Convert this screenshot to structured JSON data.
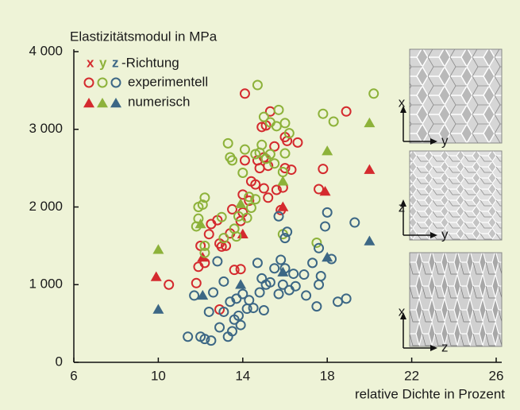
{
  "chart_data": {
    "type": "scatter",
    "title": "Elastizitätsmodul in MPa",
    "xlabel": "relative Dichte in Prozent",
    "xlim": [
      6,
      26
    ],
    "xticks": [
      6,
      10,
      14,
      18,
      22,
      26
    ],
    "ylim": [
      0,
      4000
    ],
    "yticks": [
      0,
      {
        "value": 1000,
        "label": "1 000"
      },
      {
        "value": 2000,
        "label": "2 000"
      },
      {
        "value": 3000,
        "label": "3 000"
      },
      {
        "value": 4000,
        "label": "4 000"
      }
    ],
    "legend_suffix": "-Richtung",
    "legend_experimental": "experimentell",
    "legend_numerical": "numerisch",
    "series": [
      {
        "name": "x",
        "color": "#d42a2e",
        "experimental_x": [
          10.5,
          11.8,
          11.9,
          12.0,
          12.2,
          12.4,
          12.5,
          12.8,
          12.9,
          13.0,
          13.2,
          13.5,
          13.6,
          13.9,
          13.9,
          14.0,
          14.0,
          14.1,
          14.3,
          14.4,
          14.6,
          14.7,
          14.8,
          14.9,
          15.0,
          15.0,
          15.1,
          15.2,
          15.2,
          15.3,
          15.5,
          15.6,
          15.8,
          16.0,
          16.0,
          16.1,
          16.3,
          16.6,
          17.6,
          17.8,
          18.9,
          14.1,
          13.4,
          12.9,
          15.9
        ],
        "experimental_y": [
          1000,
          1020,
          1230,
          1500,
          1280,
          1650,
          1780,
          1830,
          1530,
          1490,
          1500,
          1970,
          1190,
          1200,
          1820,
          1930,
          2160,
          2600,
          2080,
          2330,
          2290,
          2600,
          2500,
          3030,
          2640,
          2240,
          3050,
          2120,
          2530,
          3230,
          2780,
          2220,
          1960,
          2900,
          2500,
          2850,
          2480,
          2830,
          2230,
          2490,
          3230,
          3460,
          1660,
          680,
          2250
        ],
        "numerical_x": [
          9.9,
          12.1,
          14.0,
          15.9,
          17.9,
          20.0
        ],
        "numerical_y": [
          1100,
          1350,
          1650,
          2000,
          2200,
          2480
        ]
      },
      {
        "name": "y",
        "color": "#8db23a",
        "experimental_x": [
          11.8,
          11.9,
          11.9,
          12.1,
          12.2,
          12.2,
          12.2,
          13.0,
          13.1,
          13.3,
          13.4,
          13.5,
          13.6,
          13.7,
          13.8,
          14.0,
          14.1,
          14.2,
          14.3,
          14.4,
          14.6,
          14.7,
          14.8,
          14.9,
          15.0,
          15.1,
          15.3,
          15.3,
          15.5,
          15.6,
          15.7,
          15.9,
          16.0,
          16.2,
          16.0,
          17.5,
          17.8,
          18.3,
          20.2,
          15.9,
          14.6
        ],
        "experimental_y": [
          1750,
          1850,
          2000,
          2030,
          2120,
          1500,
          1410,
          1870,
          1600,
          2820,
          2640,
          2600,
          1720,
          1620,
          1880,
          2440,
          2740,
          1860,
          2130,
          1990,
          2680,
          3570,
          2700,
          2800,
          3160,
          2620,
          3090,
          2680,
          2560,
          3040,
          3250,
          2450,
          3080,
          2950,
          2690,
          1540,
          3200,
          3100,
          3460,
          1650,
          2100
        ],
        "numerical_x": [
          10.0,
          12.0,
          13.9,
          15.9,
          18.0,
          20.0
        ],
        "numerical_y": [
          1450,
          1780,
          2040,
          2330,
          2720,
          3080
        ]
      },
      {
        "name": "z",
        "color": "#3c6785",
        "experimental_x": [
          11.4,
          11.7,
          12.0,
          12.2,
          12.4,
          12.5,
          12.6,
          12.8,
          12.9,
          13.1,
          13.1,
          13.3,
          13.4,
          13.5,
          13.6,
          13.7,
          13.8,
          13.9,
          14.0,
          14.2,
          14.3,
          14.5,
          14.7,
          14.8,
          14.9,
          15.0,
          15.1,
          15.3,
          15.5,
          15.7,
          15.8,
          15.9,
          16.0,
          16.1,
          16.2,
          16.4,
          16.5,
          16.9,
          17.0,
          17.3,
          17.5,
          17.6,
          17.7,
          17.9,
          18.0,
          18.2,
          18.5,
          18.9,
          19.3,
          15.7,
          16.0,
          17.6
        ],
        "experimental_y": [
          330,
          860,
          330,
          300,
          650,
          280,
          900,
          1300,
          450,
          1040,
          650,
          330,
          780,
          400,
          550,
          820,
          600,
          480,
          880,
          690,
          800,
          700,
          1280,
          900,
          1080,
          670,
          1000,
          1030,
          1210,
          880,
          1320,
          1000,
          1210,
          1680,
          930,
          1140,
          980,
          1130,
          860,
          1280,
          720,
          1470,
          1110,
          1750,
          1930,
          1330,
          780,
          820,
          1800,
          1880,
          1600,
          1000
        ],
        "numerical_x": [
          10.0,
          12.1,
          13.9,
          15.9,
          18.0,
          20.0
        ],
        "numerical_y": [
          680,
          860,
          1000,
          1160,
          1350,
          1560
        ]
      }
    ],
    "insets": [
      {
        "vertical": "x",
        "horizontal": "y"
      },
      {
        "vertical": "z",
        "horizontal": "y"
      },
      {
        "vertical": "x",
        "horizontal": "z"
      }
    ]
  }
}
